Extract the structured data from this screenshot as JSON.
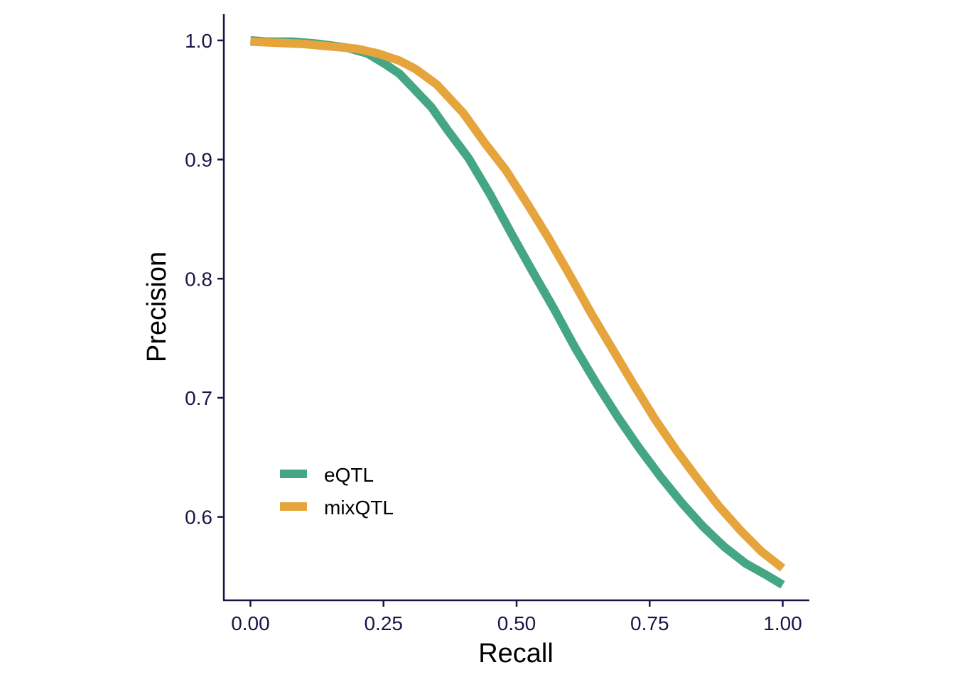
{
  "chart_data": {
    "type": "line",
    "xlabel": "Recall",
    "ylabel": "Precision",
    "xlim": [
      -0.05,
      1.05
    ],
    "ylim": [
      0.53,
      1.022
    ],
    "x_ticks": [
      0,
      0.25,
      0.5,
      0.75,
      1
    ],
    "x_tick_labels": [
      "0.00",
      "0.25",
      "0.50",
      "0.75",
      "1.00"
    ],
    "y_ticks": [
      0.6,
      0.7,
      0.8,
      0.9,
      1.0
    ],
    "y_tick_labels": [
      "0.6",
      "0.7",
      "0.8",
      "0.9",
      "1.0"
    ],
    "grid": false,
    "legend_position": "bottom-left",
    "series": [
      {
        "name": "eQTL",
        "color": "#44a682",
        "x": [
          0,
          0.03,
          0.08,
          0.13,
          0.18,
          0.22,
          0.25,
          0.28,
          0.31,
          0.34,
          0.37,
          0.41,
          0.45,
          0.49,
          0.53,
          0.57,
          0.61,
          0.65,
          0.69,
          0.73,
          0.77,
          0.81,
          0.85,
          0.89,
          0.93,
          0.97,
          1.0
        ],
        "y": [
          1.0,
          0.999,
          0.999,
          0.997,
          0.994,
          0.989,
          0.981,
          0.972,
          0.958,
          0.944,
          0.925,
          0.901,
          0.871,
          0.838,
          0.806,
          0.775,
          0.742,
          0.712,
          0.684,
          0.658,
          0.634,
          0.612,
          0.592,
          0.575,
          0.561,
          0.551,
          0.543
        ]
      },
      {
        "name": "mixQTL",
        "color": "#e6a53c",
        "x": [
          0,
          0.05,
          0.1,
          0.15,
          0.2,
          0.24,
          0.28,
          0.31,
          0.35,
          0.4,
          0.44,
          0.48,
          0.52,
          0.56,
          0.6,
          0.64,
          0.68,
          0.72,
          0.76,
          0.8,
          0.84,
          0.88,
          0.92,
          0.96,
          1.0
        ],
        "y": [
          0.999,
          0.998,
          0.997,
          0.995,
          0.993,
          0.989,
          0.983,
          0.976,
          0.963,
          0.939,
          0.914,
          0.891,
          0.863,
          0.834,
          0.803,
          0.771,
          0.741,
          0.711,
          0.682,
          0.656,
          0.632,
          0.609,
          0.589,
          0.571,
          0.557
        ]
      }
    ]
  }
}
